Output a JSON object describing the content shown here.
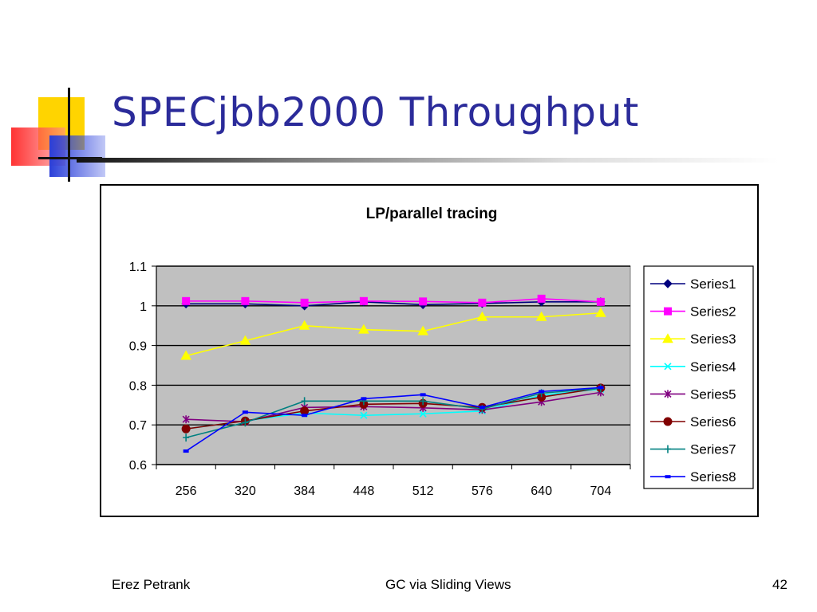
{
  "slide": {
    "title": "SPECjbb2000 Throughput",
    "footer_left": "Erez Petrank",
    "footer_center": "GC via Sliding Views",
    "page_number": "42"
  },
  "colors": {
    "title": "#2b2b9a",
    "plot_background": "#c0c0c0",
    "decor_yellow": "#ffd400",
    "decor_red": "#ff2828",
    "decor_blue": "#2a3fd9"
  },
  "chart_data": {
    "type": "line",
    "title": "LP/parallel tracing",
    "xlabel": "",
    "ylabel": "",
    "categories": [
      "256",
      "320",
      "384",
      "448",
      "512",
      "576",
      "640",
      "704"
    ],
    "ylim": [
      0.6,
      1.1
    ],
    "yticks": [
      0.6,
      0.7,
      0.8,
      0.9,
      1,
      1.1
    ],
    "ytick_labels": [
      "0.6",
      "0.7",
      "0.8",
      "0.9",
      "1",
      "1.1"
    ],
    "grid": "horizontal",
    "legend_position": "right",
    "series": [
      {
        "name": "Series1",
        "color": "#00007f",
        "marker": "diamond",
        "values": [
          1.005,
          1.005,
          1.0,
          1.01,
          1.003,
          1.006,
          1.01,
          1.01
        ]
      },
      {
        "name": "Series2",
        "color": "#ff00ff",
        "marker": "square",
        "values": [
          1.012,
          1.012,
          1.008,
          1.012,
          1.011,
          1.008,
          1.018,
          1.01
        ]
      },
      {
        "name": "Series3",
        "color": "#ffff00",
        "marker": "triangle",
        "values": [
          0.874,
          0.912,
          0.95,
          0.94,
          0.936,
          0.972,
          0.972,
          0.982
        ]
      },
      {
        "name": "Series4",
        "color": "#00ffff",
        "marker": "x",
        "values": [
          0.69,
          0.71,
          0.73,
          0.724,
          0.728,
          0.735,
          0.775,
          0.79
        ]
      },
      {
        "name": "Series5",
        "color": "#800080",
        "marker": "star",
        "values": [
          0.714,
          0.708,
          0.744,
          0.746,
          0.743,
          0.738,
          0.758,
          0.782
        ]
      },
      {
        "name": "Series6",
        "color": "#800000",
        "marker": "circle",
        "values": [
          0.69,
          0.71,
          0.735,
          0.752,
          0.754,
          0.744,
          0.77,
          0.793
        ]
      },
      {
        "name": "Series7",
        "color": "#008080",
        "marker": "plus",
        "values": [
          0.668,
          0.706,
          0.76,
          0.76,
          0.76,
          0.74,
          0.78,
          0.792
        ]
      },
      {
        "name": "Series8",
        "color": "#0000ff",
        "marker": "dash",
        "values": [
          0.634,
          0.732,
          0.724,
          0.766,
          0.776,
          0.744,
          0.784,
          0.794
        ]
      }
    ]
  }
}
